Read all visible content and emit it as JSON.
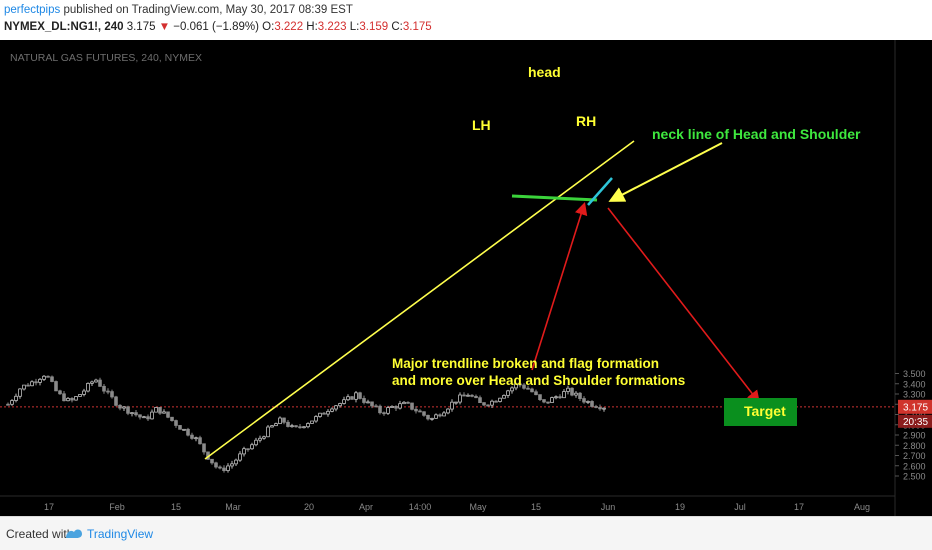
{
  "header": {
    "author": "perfectpips",
    "published": "published on TradingView.com, May 30, 2017 08:39 EST",
    "symbol": "NYMEX_DL:NG1!, 240",
    "last": "3.175",
    "down_arrow": "▼",
    "change": "−0.061 (−1.89%)",
    "o_label": "O:",
    "o_value": "3.222",
    "h_label": "H:",
    "h_value": "3.223",
    "l_label": "L:",
    "l_value": "3.159",
    "c_label": "C:",
    "c_value": "3.175"
  },
  "footer": {
    "created_with": "Created with",
    "brand": "TradingView"
  },
  "colors": {
    "background": "#000000",
    "candle_up": "#bdbdbd",
    "candle_down": "#8a8a8a",
    "trendline": "#ffff4d",
    "neckline": "#3bd33b",
    "flag": "#2ec5d8",
    "arrow": "#e01b1b",
    "label_yellow": "#ffff33",
    "label_green": "#3ee83e",
    "price_badge": "#d0342c",
    "target_box": "#0a8f1e"
  },
  "chart_data": {
    "type": "candlestick",
    "title": "NATURAL GAS FUTURES, 240, NYMEX",
    "xlabel": "",
    "ylabel": "",
    "ylim": [
      2.45,
      3.55
    ],
    "y_ticks": [
      "3.500",
      "3.400",
      "3.300",
      "3.200",
      "3.100",
      "3.000",
      "2.900",
      "2.800",
      "2.700",
      "2.600",
      "2.500"
    ],
    "x_ticks": [
      "17",
      "Feb",
      "15",
      "Mar",
      "20",
      "Apr",
      "14:00",
      "May",
      "15",
      "Jun",
      "19",
      "Jul",
      "17",
      "Aug"
    ],
    "grid": false,
    "current_price": "3.175",
    "countdown": "20:35",
    "series": [
      {
        "x": 0,
        "close": 3.2
      },
      {
        "x": 1,
        "close": 3.36
      },
      {
        "x": 2,
        "close": 3.42
      },
      {
        "x": 3,
        "close": 3.5
      },
      {
        "x": 4,
        "close": 3.3
      },
      {
        "x": 5,
        "close": 3.22
      },
      {
        "x": 6,
        "close": 3.32
      },
      {
        "x": 7,
        "close": 3.45
      },
      {
        "x": 8,
        "close": 3.3
      },
      {
        "x": 9,
        "close": 3.18
      },
      {
        "x": 10,
        "close": 3.12
      },
      {
        "x": 11,
        "close": 3.05
      },
      {
        "x": 12,
        "close": 3.16
      },
      {
        "x": 13,
        "close": 3.06
      },
      {
        "x": 14,
        "close": 2.96
      },
      {
        "x": 15,
        "close": 2.88
      },
      {
        "x": 16,
        "close": 2.7
      },
      {
        "x": 17,
        "close": 2.55
      },
      {
        "x": 18,
        "close": 2.62
      },
      {
        "x": 19,
        "close": 2.74
      },
      {
        "x": 20,
        "close": 2.84
      },
      {
        "x": 21,
        "close": 2.96
      },
      {
        "x": 22,
        "close": 3.05
      },
      {
        "x": 23,
        "close": 2.95
      },
      {
        "x": 24,
        "close": 3.02
      },
      {
        "x": 25,
        "close": 3.08
      },
      {
        "x": 26,
        "close": 3.18
      },
      {
        "x": 27,
        "close": 3.22
      },
      {
        "x": 28,
        "close": 3.3
      },
      {
        "x": 29,
        "close": 3.2
      },
      {
        "x": 30,
        "close": 3.12
      },
      {
        "x": 31,
        "close": 3.18
      },
      {
        "x": 32,
        "close": 3.2
      },
      {
        "x": 33,
        "close": 3.13
      },
      {
        "x": 34,
        "close": 3.05
      },
      {
        "x": 35,
        "close": 3.14
      },
      {
        "x": 36,
        "close": 3.24
      },
      {
        "x": 37,
        "close": 3.3
      },
      {
        "x": 38,
        "close": 3.2
      },
      {
        "x": 39,
        "close": 3.23
      },
      {
        "x": 40,
        "close": 3.32
      },
      {
        "x": 41,
        "close": 3.4
      },
      {
        "x": 42,
        "close": 3.34
      },
      {
        "x": 43,
        "close": 3.2
      },
      {
        "x": 44,
        "close": 3.27
      },
      {
        "x": 45,
        "close": 3.33
      },
      {
        "x": 46,
        "close": 3.26
      },
      {
        "x": 47,
        "close": 3.2
      },
      {
        "x": 48,
        "close": 3.175
      }
    ],
    "annotations": {
      "head": "head",
      "lh": "LH",
      "rh": "RH",
      "neck": "neck line of Head and Shoulder",
      "note_line1": "Major trendline broken and flag formation",
      "note_line2": "and more over Head and Shoulder formations",
      "target": "Target"
    }
  }
}
